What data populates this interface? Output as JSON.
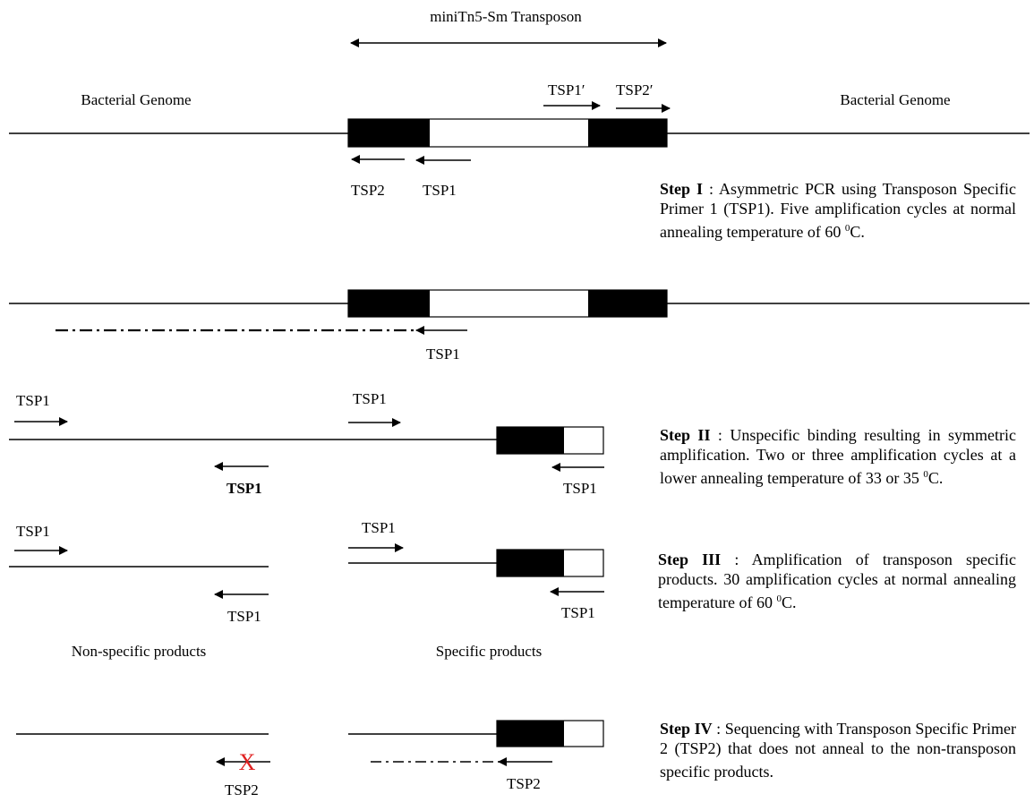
{
  "transposon_label": "miniTn5-Sm Transposon",
  "genome_left": "Bacterial Genome",
  "genome_right": "Bacterial Genome",
  "primers": {
    "tsp1": "TSP1",
    "tsp2": "TSP2",
    "tsp1_prime": "TSP1′",
    "tsp2_prime": "TSP2′"
  },
  "failed_mark": "X",
  "products": {
    "nonspecific": "Non-specific products",
    "specific": "Specific products"
  },
  "steps": [
    {
      "title": "Step I",
      "sep": " : ",
      "pre": "Asymmetric PCR using Transposon Specific Primer 1 (TSP1). Five amplification cycles at normal annealing temperature of 60",
      "sup": "0",
      "post": "C."
    },
    {
      "title": "Step II",
      "sep": " : ",
      "pre": "Unspecific binding resulting in symmetric amplification.  Two or three amplification cycles at a lower annealing temperature of 33 or 35",
      "sup": "0",
      "post": "C."
    },
    {
      "title": "Step III",
      "sep": " : ",
      "pre": "Amplification of transposon specific products. 30 amplification cycles at normal annealing temperature of 60",
      "sup": "0",
      "post": "C."
    },
    {
      "title": "Step IV",
      "sep": " : ",
      "pre": "Sequencing with Transposon Specific Primer 2 (TSP2) that does not anneal to the non-transposon specific products.",
      "sup": "",
      "post": ""
    }
  ],
  "colors": {
    "ink": "#000000",
    "fail_mark": "#e02020"
  }
}
